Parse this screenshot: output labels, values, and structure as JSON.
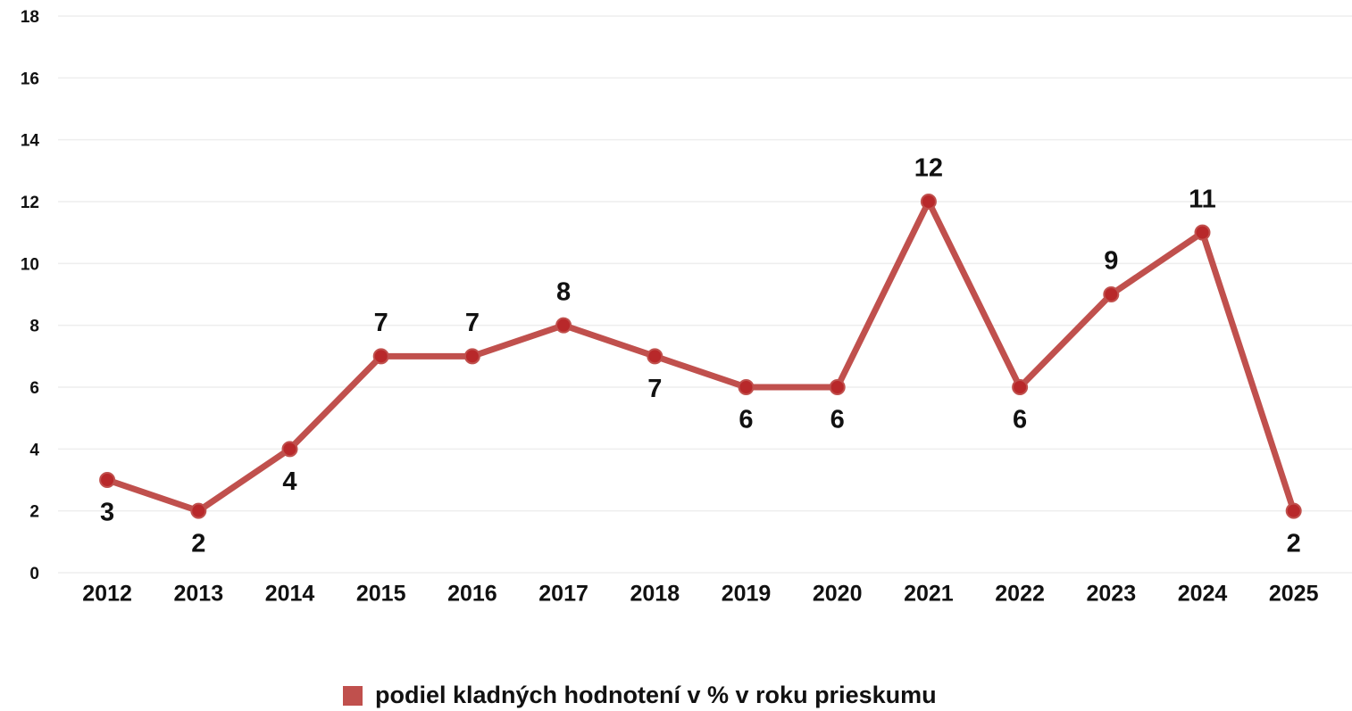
{
  "chart_data": {
    "type": "line",
    "categories": [
      "2012",
      "2013",
      "2014",
      "2015",
      "2016",
      "2017",
      "2018",
      "2019",
      "2020",
      "2021",
      "2022",
      "2023",
      "2024",
      "2025"
    ],
    "series": [
      {
        "name": "podiel kladných hodnotení v % v roku prieskumu",
        "color": "#c0504d",
        "marker_color": "#b8282a",
        "values": [
          3,
          2,
          4,
          7,
          7,
          8,
          7,
          6,
          6,
          12,
          6,
          9,
          11,
          2
        ]
      }
    ],
    "ylim": [
      0,
      18
    ],
    "yticks": [
      0,
      2,
      4,
      6,
      8,
      10,
      12,
      14,
      16,
      18
    ],
    "grid": true,
    "legend": "bottom"
  }
}
